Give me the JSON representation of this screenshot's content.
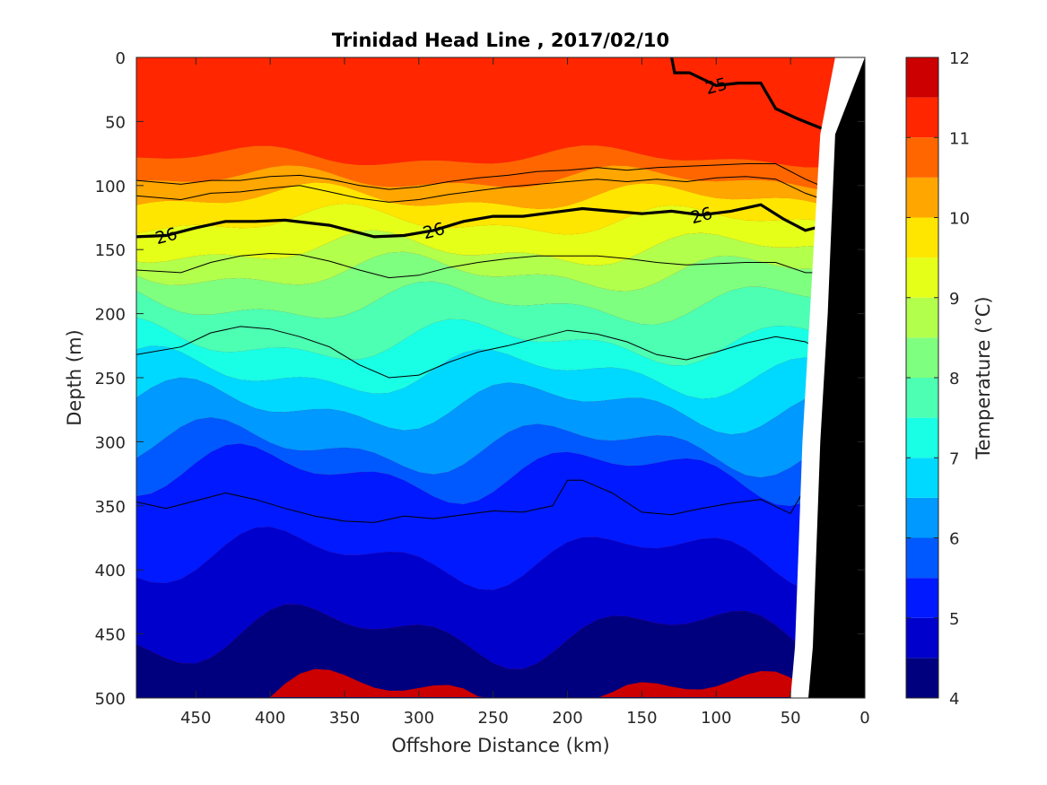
{
  "chart_data": {
    "type": "contour",
    "title": "Trinidad Head Line , 2017/02/10",
    "xlabel": "Offshore Distance (km)",
    "ylabel": "Depth (m)",
    "xlim": [
      490,
      0
    ],
    "ylim": [
      0,
      500
    ],
    "x_reversed": true,
    "y_reversed": true,
    "xticks": [
      450,
      400,
      350,
      300,
      250,
      200,
      150,
      100,
      50,
      0
    ],
    "yticks": [
      0,
      50,
      100,
      150,
      200,
      250,
      300,
      350,
      400,
      450,
      500
    ],
    "colorbar": {
      "label": "Temperature (°C)",
      "range": [
        4,
        12
      ],
      "ticks": [
        4,
        5,
        6,
        7,
        8,
        9,
        10,
        11,
        12
      ],
      "levels": [
        4,
        4.5,
        5,
        5.5,
        6,
        6.5,
        7,
        7.5,
        8,
        8.5,
        9,
        9.5,
        10,
        10.5,
        11,
        11.5,
        12
      ],
      "colors": [
        "#00007f",
        "#0000cc",
        "#0019ff",
        "#0059ff",
        "#0099ff",
        "#00d9ff",
        "#19ffe5",
        "#4cffb2",
        "#7fff7f",
        "#b2ff4c",
        "#e5ff19",
        "#ffe600",
        "#ffa600",
        "#ff6600",
        "#ff2600",
        "#cc0000",
        "#800000"
      ]
    },
    "temperature_bands": [
      {
        "range": [
          11.5,
          12.0
        ],
        "depth_top_at_x": [
          [
            490,
            null
          ],
          [
            30,
            30
          ],
          [
            20,
            60
          ]
        ]
      },
      {
        "range": [
          11.0,
          11.5
        ],
        "mean_bottom_depth": 78
      },
      {
        "range": [
          10.5,
          11.0
        ],
        "mean_bottom_depth": 95
      },
      {
        "range": [
          10.0,
          10.5
        ],
        "mean_bottom_depth": 110
      },
      {
        "range": [
          9.5,
          10.0
        ],
        "mean_bottom_depth": 128
      },
      {
        "range": [
          9.0,
          9.5
        ],
        "mean_bottom_depth": 150
      },
      {
        "range": [
          8.5,
          9.0
        ],
        "mean_bottom_depth": 168
      },
      {
        "range": [
          8.0,
          8.5
        ],
        "mean_bottom_depth": 192
      },
      {
        "range": [
          7.5,
          8.0
        ],
        "mean_bottom_depth": 222
      },
      {
        "range": [
          7.0,
          7.5
        ],
        "mean_bottom_depth": 246
      },
      {
        "range": [
          6.5,
          7.0
        ],
        "mean_bottom_depth": 272
      },
      {
        "range": [
          6.0,
          6.5
        ],
        "mean_bottom_depth": 304
      },
      {
        "range": [
          5.5,
          6.0
        ],
        "mean_bottom_depth": 325
      },
      {
        "range": [
          5.0,
          5.5
        ],
        "mean_bottom_depth": 390
      },
      {
        "range": [
          4.5,
          5.0
        ],
        "mean_bottom_depth": 450
      },
      {
        "range": [
          4.0,
          4.5
        ],
        "mean_bottom_depth": 500
      }
    ],
    "density_contours": [
      {
        "label": "25",
        "bold": true,
        "points": [
          [
            130,
            0
          ],
          [
            128,
            12
          ],
          [
            118,
            12
          ],
          [
            100,
            22
          ],
          [
            85,
            20
          ],
          [
            70,
            20
          ],
          [
            60,
            40
          ],
          [
            45,
            48
          ],
          [
            30,
            55
          ],
          [
            20,
            58
          ]
        ]
      },
      {
        "label": "26",
        "bold": true,
        "points": [
          [
            490,
            140
          ],
          [
            470,
            139
          ],
          [
            450,
            133
          ],
          [
            430,
            128
          ],
          [
            410,
            128
          ],
          [
            390,
            127
          ],
          [
            360,
            131
          ],
          [
            330,
            140
          ],
          [
            310,
            139
          ],
          [
            290,
            135
          ],
          [
            270,
            128
          ],
          [
            250,
            124
          ],
          [
            230,
            124
          ],
          [
            210,
            121
          ],
          [
            190,
            118
          ],
          [
            170,
            120
          ],
          [
            150,
            122
          ],
          [
            130,
            120
          ],
          [
            110,
            123
          ],
          [
            90,
            120
          ],
          [
            70,
            115
          ],
          [
            55,
            126
          ],
          [
            40,
            135
          ],
          [
            30,
            132
          ],
          [
            20,
            127
          ]
        ]
      },
      {
        "label": "",
        "bold": false,
        "points": [
          [
            490,
            96
          ],
          [
            460,
            99
          ],
          [
            440,
            96
          ],
          [
            420,
            96
          ],
          [
            400,
            93
          ],
          [
            380,
            92
          ],
          [
            360,
            95
          ],
          [
            340,
            100
          ],
          [
            320,
            103
          ],
          [
            300,
            101
          ],
          [
            280,
            97
          ],
          [
            260,
            94
          ],
          [
            240,
            92
          ],
          [
            220,
            89
          ],
          [
            200,
            88
          ],
          [
            180,
            86
          ],
          [
            160,
            88
          ],
          [
            140,
            86
          ],
          [
            120,
            85
          ],
          [
            100,
            84
          ],
          [
            80,
            83
          ],
          [
            60,
            83
          ],
          [
            40,
            95
          ],
          [
            30,
            100
          ]
        ]
      },
      {
        "label": "",
        "bold": false,
        "points": [
          [
            490,
            108
          ],
          [
            460,
            111
          ],
          [
            440,
            106
          ],
          [
            420,
            105
          ],
          [
            400,
            102
          ],
          [
            380,
            100
          ],
          [
            360,
            105
          ],
          [
            340,
            110
          ],
          [
            320,
            113
          ],
          [
            300,
            111
          ],
          [
            280,
            107
          ],
          [
            260,
            104
          ],
          [
            240,
            101
          ],
          [
            220,
            99
          ],
          [
            200,
            97
          ],
          [
            180,
            95
          ],
          [
            160,
            97
          ],
          [
            140,
            95
          ],
          [
            120,
            97
          ],
          [
            100,
            94
          ],
          [
            80,
            93
          ],
          [
            60,
            95
          ],
          [
            40,
            106
          ],
          [
            30,
            110
          ]
        ]
      },
      {
        "label": "",
        "bold": false,
        "points": [
          [
            490,
            166
          ],
          [
            460,
            168
          ],
          [
            440,
            160
          ],
          [
            420,
            155
          ],
          [
            400,
            153
          ],
          [
            380,
            154
          ],
          [
            360,
            159
          ],
          [
            340,
            166
          ],
          [
            320,
            172
          ],
          [
            300,
            170
          ],
          [
            280,
            164
          ],
          [
            260,
            160
          ],
          [
            240,
            157
          ],
          [
            220,
            155
          ],
          [
            200,
            155
          ],
          [
            180,
            155
          ],
          [
            160,
            157
          ],
          [
            140,
            160
          ],
          [
            120,
            162
          ],
          [
            100,
            161
          ],
          [
            80,
            160
          ],
          [
            60,
            160
          ],
          [
            40,
            168
          ],
          [
            20,
            168
          ]
        ]
      },
      {
        "label": "",
        "bold": false,
        "points": [
          [
            490,
            232
          ],
          [
            460,
            226
          ],
          [
            440,
            215
          ],
          [
            420,
            210
          ],
          [
            400,
            212
          ],
          [
            380,
            218
          ],
          [
            360,
            226
          ],
          [
            340,
            240
          ],
          [
            320,
            250
          ],
          [
            300,
            248
          ],
          [
            280,
            238
          ],
          [
            260,
            230
          ],
          [
            240,
            225
          ],
          [
            220,
            219
          ],
          [
            200,
            213
          ],
          [
            180,
            216
          ],
          [
            160,
            222
          ],
          [
            140,
            232
          ],
          [
            120,
            236
          ],
          [
            100,
            230
          ],
          [
            80,
            223
          ],
          [
            60,
            218
          ],
          [
            40,
            222
          ],
          [
            28,
            230
          ]
        ]
      },
      {
        "label": "",
        "bold": false,
        "points": [
          [
            490,
            347
          ],
          [
            470,
            352
          ],
          [
            450,
            346
          ],
          [
            430,
            340
          ],
          [
            410,
            345
          ],
          [
            390,
            352
          ],
          [
            370,
            358
          ],
          [
            350,
            362
          ],
          [
            330,
            363
          ],
          [
            310,
            358
          ],
          [
            290,
            360
          ],
          [
            270,
            357
          ],
          [
            250,
            354
          ],
          [
            230,
            355
          ],
          [
            210,
            350
          ],
          [
            200,
            330
          ],
          [
            190,
            330
          ],
          [
            170,
            340
          ],
          [
            150,
            355
          ],
          [
            130,
            357
          ],
          [
            110,
            352
          ],
          [
            90,
            348
          ],
          [
            70,
            345
          ],
          [
            50,
            356
          ],
          [
            40,
            336
          ],
          [
            32,
            355
          ]
        ]
      }
    ],
    "bathymetry_profile": [
      [
        20,
        60
      ],
      [
        25,
        200
      ],
      [
        30,
        300
      ],
      [
        35,
        460
      ],
      [
        38,
        500
      ]
    ],
    "colors": {
      "contour_line": "#000000",
      "seafloor_fill": "#000000",
      "nodata_fill": "#ffffff"
    }
  }
}
